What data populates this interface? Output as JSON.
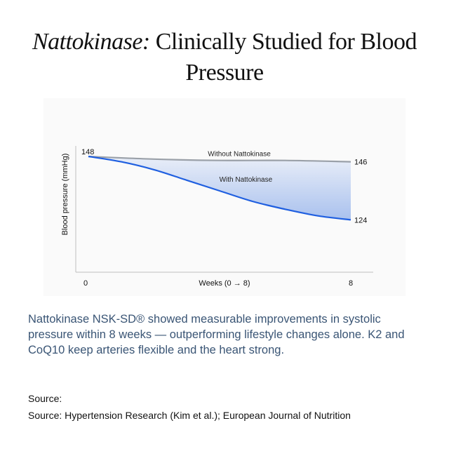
{
  "title": {
    "italic": "Nattokinase:",
    "rest": " Clinically Studied for Blood Pressure"
  },
  "body_text": "Nattokinase NSK-SD® showed measurable improvements in systolic pressure within 8 weeks — outperforming lifestyle changes alone. K2 and CoQ10 keep arteries flexible and the heart strong.",
  "source": {
    "heading": "Source:",
    "text": "Source: Hypertension Research (Kim et al.); European Journal of Nutrition"
  },
  "chart_data": {
    "type": "line",
    "title": "",
    "xlabel": "Weeks (0 → 8)",
    "ylabel": "Blood pressure (mmHg)",
    "xlim": [
      0,
      8
    ],
    "ylim": [
      110,
      152
    ],
    "x_ticks": [
      "0",
      "8"
    ],
    "grid": false,
    "series": [
      {
        "name": "Without Nattokinase",
        "x": [
          0,
          2,
          4,
          6,
          8
        ],
        "y": [
          148,
          147,
          146.5,
          146.5,
          146
        ],
        "end_labels": [
          "148",
          "146"
        ],
        "color": "#9aa0a8"
      },
      {
        "name": "With Nattokinase",
        "x": [
          0,
          1,
          2,
          3,
          4,
          5,
          6,
          7,
          8
        ],
        "y": [
          148,
          146,
          143,
          139,
          135,
          131,
          128,
          125.5,
          124
        ],
        "end_labels": [
          "",
          "124"
        ],
        "color": "#1f5fe0"
      }
    ],
    "fill_between": {
      "top_color": "#e9eef8",
      "bottom_color": "#a9c1ee"
    }
  }
}
